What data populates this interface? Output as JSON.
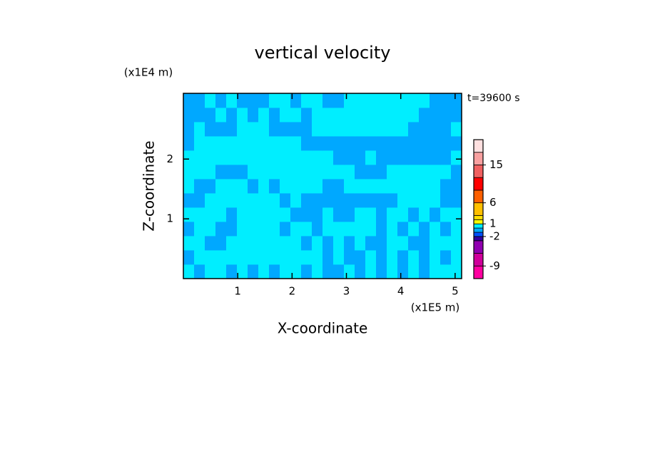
{
  "chart_data": {
    "type": "contour",
    "title": "vertical velocity",
    "x_label": "X-coordinate",
    "y_label": "Z-coordinate",
    "x_scale_label": "(x1E5 m)",
    "y_scale_label": "(x1E4 m)",
    "time_label": "t=39600 s",
    "xlim": [
      0,
      5.12
    ],
    "ylim": [
      0,
      3.1
    ],
    "xticks": [
      1,
      2,
      3,
      4,
      5
    ],
    "yticks": [
      1,
      2
    ],
    "levels": [
      -12,
      -9,
      -6,
      -3,
      -2,
      -1,
      0,
      1,
      2,
      3,
      6,
      9,
      12,
      15,
      18,
      21
    ],
    "colors": [
      "#ff00a0",
      "#d0009a",
      "#9000b0",
      "#3000a0",
      "#0050ff",
      "#00a8ff",
      "#00eeff",
      "#ffff00",
      "#ffe000",
      "#ffc000",
      "#ff6000",
      "#ff0000",
      "#f06060",
      "#f8a0a0",
      "#ffe0e0"
    ],
    "colorbar_ticks": [
      15,
      6,
      1,
      -2,
      -9
    ],
    "z": [
      [
        0.5,
        -0.5,
        0.5,
        0.5,
        -0.5,
        0.5,
        -0.5,
        0.5,
        -0.5,
        0.5,
        0.5,
        -0.5,
        0.5,
        -0.5,
        -0.5,
        0.5,
        -0.5,
        0.5,
        -0.5,
        0.5,
        -0.5,
        0.5,
        -0.5,
        0.5,
        0.5,
        0.5
      ],
      [
        -0.5,
        0.5,
        0.5,
        0.5,
        0.5,
        0.5,
        0.5,
        0.5,
        0.5,
        0.5,
        0.5,
        0.5,
        0.5,
        -0.5,
        0.5,
        -0.5,
        -0.5,
        0.5,
        -0.5,
        0.5,
        -0.5,
        0.5,
        -0.5,
        0.5,
        -0.5,
        0.5
      ],
      [
        0.5,
        0.5,
        -0.5,
        -0.5,
        0.5,
        0.5,
        0.5,
        0.5,
        0.5,
        0.5,
        0.5,
        -0.5,
        0.5,
        -0.5,
        0.5,
        -0.5,
        0.5,
        -0.5,
        -0.5,
        0.5,
        0.5,
        -0.5,
        -0.5,
        0.5,
        0.5,
        0.5
      ],
      [
        -0.5,
        0.5,
        0.5,
        -0.5,
        -0.5,
        0.5,
        0.5,
        0.5,
        0.5,
        -0.5,
        0.5,
        0.5,
        -0.5,
        0.5,
        0.5,
        0.5,
        0.5,
        0.5,
        -0.5,
        0.5,
        -0.5,
        0.5,
        -0.5,
        0.5,
        -0.5,
        0.5
      ],
      [
        0.5,
        0.5,
        0.5,
        0.5,
        -0.5,
        0.5,
        0.5,
        0.5,
        0.5,
        0.5,
        -0.5,
        -0.5,
        -0.5,
        0.5,
        -0.5,
        -0.5,
        0.5,
        0.5,
        -0.5,
        0.5,
        0.5,
        -0.5,
        0.5,
        -0.5,
        0.5,
        0.5
      ],
      [
        -0.5,
        -0.5,
        0.5,
        0.5,
        0.5,
        0.5,
        0.5,
        0.5,
        0.5,
        -0.5,
        0.5,
        -0.5,
        -0.5,
        -0.5,
        -0.5,
        -0.5,
        -0.5,
        -0.5,
        -0.5,
        -0.5,
        0.5,
        0.5,
        0.5,
        0.5,
        -0.5,
        -0.5
      ],
      [
        0.5,
        -0.5,
        -0.5,
        0.5,
        0.5,
        0.5,
        -0.5,
        0.5,
        -0.5,
        0.5,
        0.5,
        0.5,
        0.5,
        -0.5,
        -0.5,
        0.5,
        0.5,
        0.5,
        0.5,
        0.5,
        0.5,
        0.5,
        0.5,
        0.5,
        -0.5,
        -0.5
      ],
      [
        0.5,
        0.5,
        0.5,
        -0.5,
        -0.5,
        -0.5,
        0.5,
        0.5,
        0.5,
        0.5,
        0.5,
        0.5,
        0.5,
        0.5,
        0.5,
        0.5,
        -0.5,
        -0.5,
        -0.5,
        0.5,
        0.5,
        0.5,
        0.5,
        0.5,
        0.5,
        -0.5
      ],
      [
        0.5,
        0.5,
        0.5,
        0.5,
        0.5,
        0.5,
        0.5,
        0.5,
        0.5,
        0.5,
        0.5,
        0.5,
        0.5,
        0.5,
        -0.5,
        -0.5,
        -0.5,
        0.5,
        -0.5,
        -0.5,
        -0.5,
        -0.5,
        -0.5,
        -0.5,
        -0.5,
        0.5
      ],
      [
        -0.5,
        0.5,
        0.5,
        0.5,
        0.5,
        0.5,
        0.5,
        0.5,
        0.5,
        0.5,
        0.5,
        -0.5,
        -0.5,
        -0.5,
        -0.5,
        -0.5,
        -0.5,
        -0.5,
        -0.5,
        -0.5,
        -0.5,
        -0.5,
        -0.5,
        -0.5,
        -0.5,
        -0.5
      ],
      [
        -0.5,
        0.5,
        -0.5,
        -0.5,
        -0.5,
        0.5,
        0.5,
        0.5,
        -0.5,
        -0.5,
        -0.5,
        -0.5,
        0.5,
        0.5,
        0.5,
        0.5,
        0.5,
        0.5,
        0.5,
        0.5,
        0.5,
        -0.5,
        -0.5,
        -0.5,
        -0.5,
        0.5
      ],
      [
        -0.5,
        -0.5,
        -0.5,
        0.5,
        -0.5,
        0.5,
        -0.5,
        0.5,
        -0.5,
        0.5,
        0.5,
        -0.5,
        0.5,
        0.5,
        0.5,
        0.5,
        0.5,
        0.5,
        0.5,
        0.5,
        0.5,
        0.5,
        -0.5,
        -0.5,
        -0.5,
        -0.5
      ],
      [
        -0.5,
        -0.5,
        0.5,
        -0.5,
        0.5,
        -0.5,
        -0.5,
        -0.5,
        0.5,
        0.5,
        -0.5,
        0.5,
        0.5,
        -0.5,
        -0.5,
        0.5,
        0.5,
        0.5,
        0.5,
        0.5,
        0.5,
        0.5,
        0.5,
        -0.5,
        -0.5,
        -0.5
      ]
    ]
  }
}
